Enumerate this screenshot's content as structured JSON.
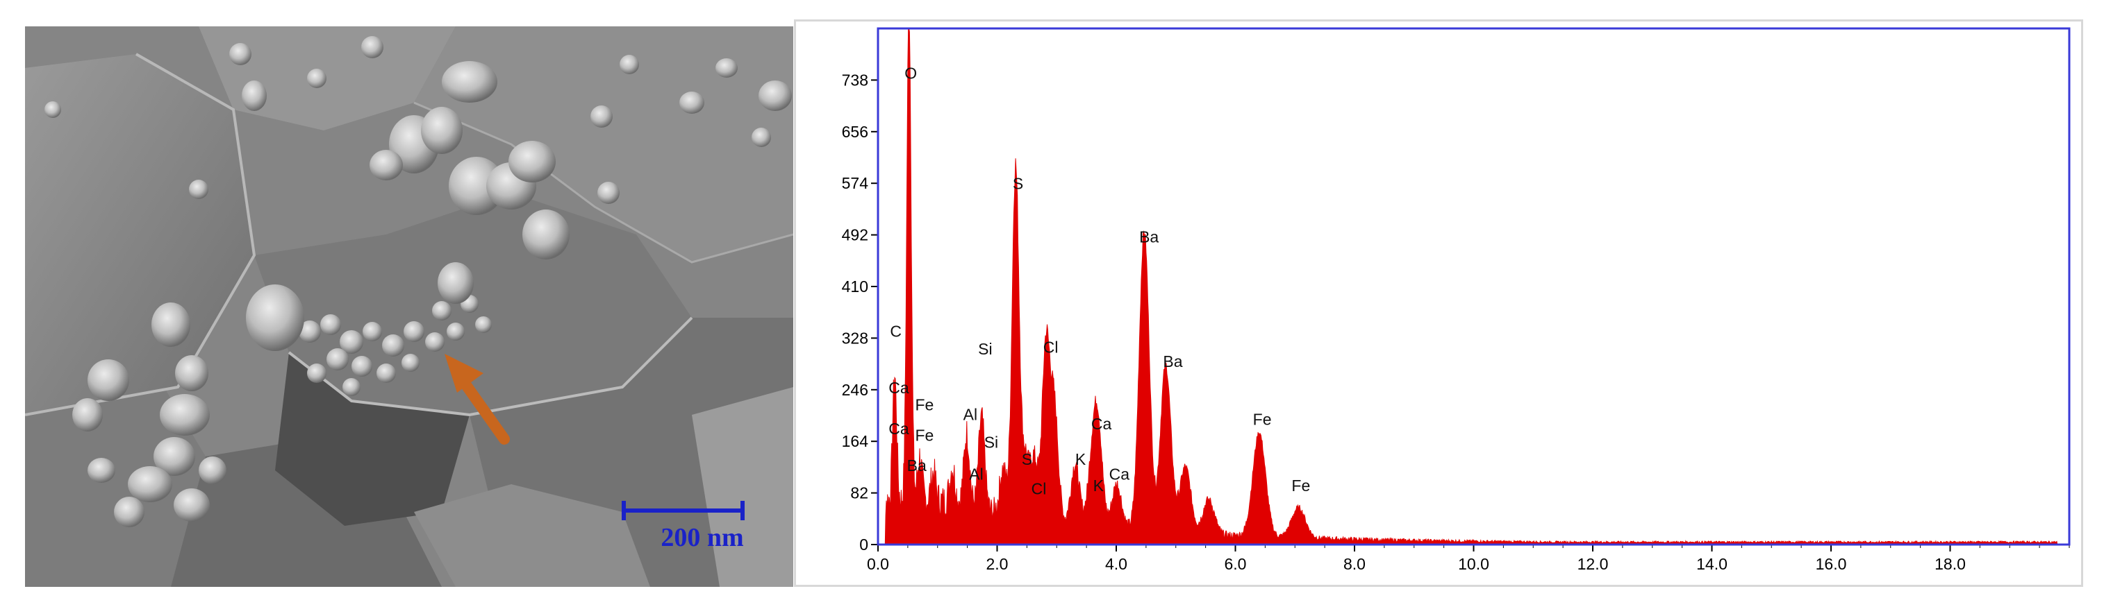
{
  "sem_image": {
    "scale_bar_label": "200 nm",
    "arrow_color": "#c8661e",
    "scale_color": "#1a22c8"
  },
  "chart_data": {
    "type": "area",
    "x_ticks": [
      "0.0",
      "2.0",
      "4.0",
      "6.0",
      "8.0",
      "10.0",
      "12.0",
      "14.0",
      "16.0",
      "18.0"
    ],
    "y_ticks": [
      "0",
      "82",
      "164",
      "246",
      "328",
      "410",
      "492",
      "574",
      "656",
      "738"
    ],
    "xlim": [
      0,
      20
    ],
    "ylim": [
      0,
      820
    ],
    "grid": false,
    "series_color": "#e00000",
    "frame_color": "#3a3ad8",
    "peaks": [
      {
        "x": 0.28,
        "y": 200
      },
      {
        "x": 0.52,
        "y": 790
      },
      {
        "x": 0.7,
        "y": 70
      },
      {
        "x": 0.93,
        "y": 45
      },
      {
        "x": 1.25,
        "y": 55
      },
      {
        "x": 1.49,
        "y": 115
      },
      {
        "x": 1.74,
        "y": 145
      },
      {
        "x": 2.1,
        "y": 70
      },
      {
        "x": 2.31,
        "y": 555
      },
      {
        "x": 2.47,
        "y": 95
      },
      {
        "x": 2.62,
        "y": 95
      },
      {
        "x": 2.82,
        "y": 280
      },
      {
        "x": 2.96,
        "y": 180
      },
      {
        "x": 3.31,
        "y": 95
      },
      {
        "x": 3.59,
        "y": 80
      },
      {
        "x": 3.69,
        "y": 160
      },
      {
        "x": 4.01,
        "y": 70
      },
      {
        "x": 4.47,
        "y": 475
      },
      {
        "x": 4.83,
        "y": 265
      },
      {
        "x": 5.16,
        "y": 105
      },
      {
        "x": 5.55,
        "y": 55
      },
      {
        "x": 6.4,
        "y": 165
      },
      {
        "x": 7.06,
        "y": 48
      }
    ],
    "peak_labels": [
      {
        "text": "O",
        "x": 0.55,
        "y": 740
      },
      {
        "text": "S",
        "x": 2.35,
        "y": 565
      },
      {
        "text": "Ba",
        "x": 4.55,
        "y": 480
      },
      {
        "text": "Ba",
        "x": 4.95,
        "y": 282
      },
      {
        "text": "C",
        "x": 0.3,
        "y": 330
      },
      {
        "text": "Si",
        "x": 1.8,
        "y": 302
      },
      {
        "text": "Cl",
        "x": 2.9,
        "y": 305
      },
      {
        "text": "Ca",
        "x": 0.35,
        "y": 240
      },
      {
        "text": "Fe",
        "x": 0.78,
        "y": 213
      },
      {
        "text": "Al",
        "x": 1.55,
        "y": 198
      },
      {
        "text": "Ca",
        "x": 0.35,
        "y": 175
      },
      {
        "text": "Fe",
        "x": 0.78,
        "y": 165
      },
      {
        "text": "Si",
        "x": 1.9,
        "y": 154
      },
      {
        "text": "Ca",
        "x": 3.75,
        "y": 183
      },
      {
        "text": "Fe",
        "x": 6.45,
        "y": 190
      },
      {
        "text": "Ba",
        "x": 0.65,
        "y": 117
      },
      {
        "text": "S",
        "x": 2.5,
        "y": 127
      },
      {
        "text": "K",
        "x": 3.4,
        "y": 127
      },
      {
        "text": "Al",
        "x": 1.65,
        "y": 103
      },
      {
        "text": "Ca",
        "x": 4.05,
        "y": 103
      },
      {
        "text": "Cl",
        "x": 2.7,
        "y": 80
      },
      {
        "text": "K",
        "x": 3.7,
        "y": 85
      },
      {
        "text": "Fe",
        "x": 7.1,
        "y": 85
      }
    ]
  }
}
